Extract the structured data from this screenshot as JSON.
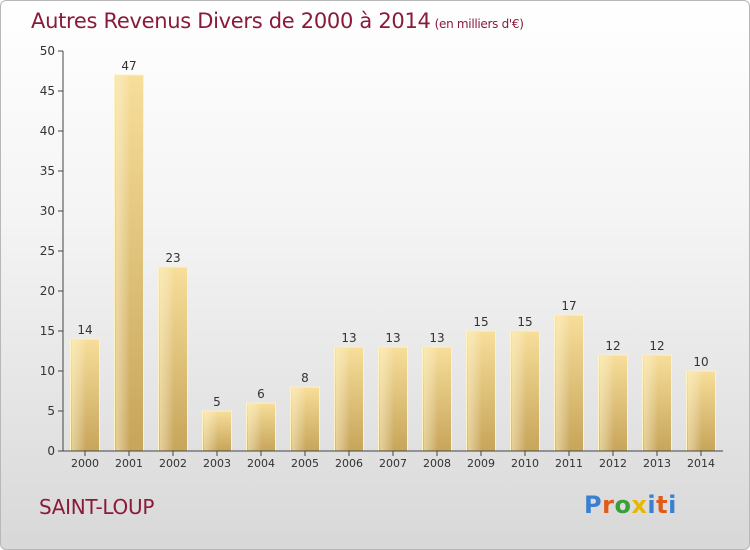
{
  "title": "Autres Revenus Divers de 2000 à 2014",
  "subtitle": "(en milliers d'€)",
  "town": "SAINT-LOUP",
  "logo_text": "Proxiti",
  "colors": {
    "title": "#8a1a3a",
    "bar_light": "#f6dc96",
    "bar_dark": "#c9a85a",
    "axis": "#333333"
  },
  "chart_data": {
    "type": "bar",
    "title": "Autres Revenus Divers de 2000 à 2014",
    "subtitle": "(en milliers d'€)",
    "categories": [
      "2000",
      "2001",
      "2002",
      "2003",
      "2004",
      "2005",
      "2006",
      "2007",
      "2008",
      "2009",
      "2010",
      "2011",
      "2012",
      "2013",
      "2014"
    ],
    "values": [
      14,
      47,
      23,
      5,
      6,
      8,
      13,
      13,
      13,
      15,
      15,
      17,
      12,
      12,
      10
    ],
    "ylim": [
      0,
      50
    ],
    "yticks": [
      0,
      5,
      10,
      15,
      20,
      25,
      30,
      35,
      40,
      45,
      50
    ],
    "grid": false,
    "data_labels": true
  }
}
